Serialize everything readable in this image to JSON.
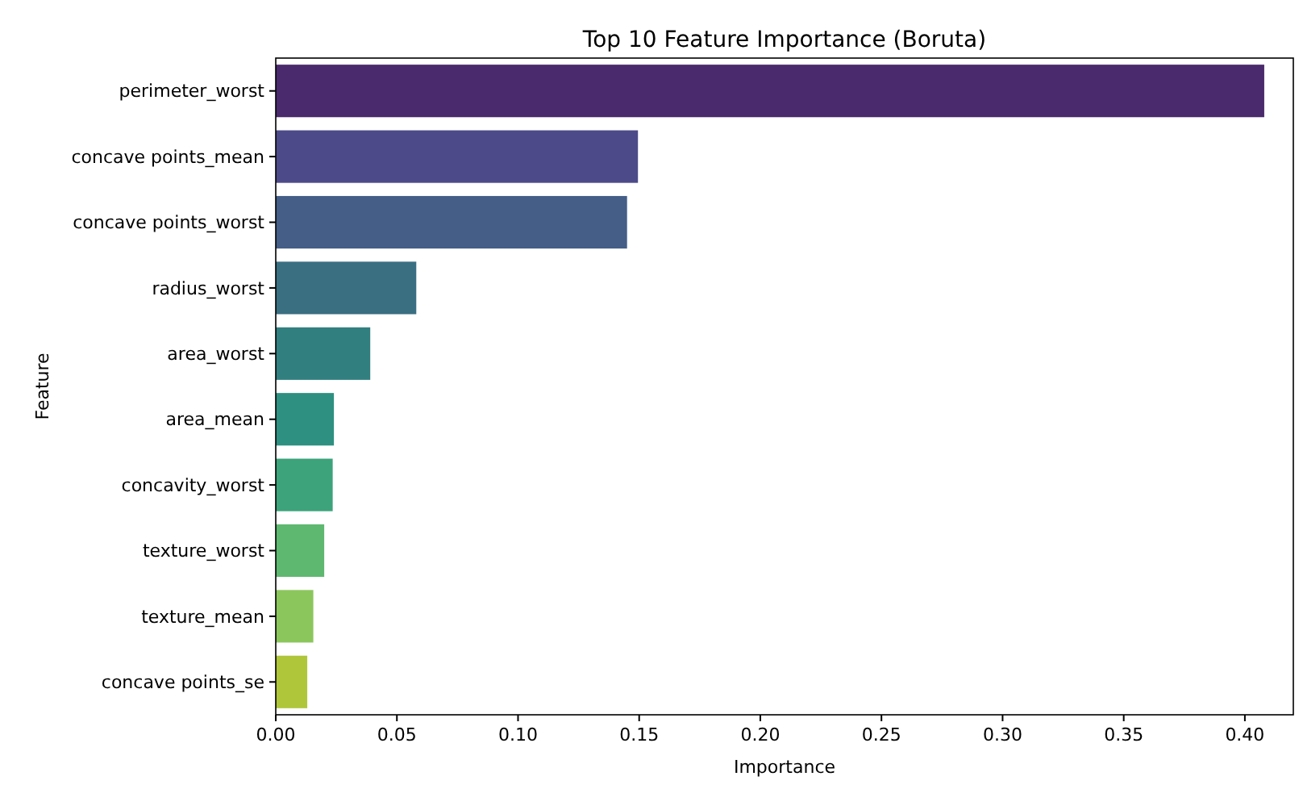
{
  "chart_data": {
    "type": "bar",
    "orientation": "horizontal",
    "title": "Top 10 Feature Importance (Boruta)",
    "xlabel": "Importance",
    "ylabel": "Feature",
    "categories": [
      "perimeter_worst",
      "concave points_mean",
      "concave points_worst",
      "radius_worst",
      "area_worst",
      "area_mean",
      "concavity_worst",
      "texture_worst",
      "texture_mean",
      "concave points_se"
    ],
    "values": [
      0.408,
      0.1495,
      0.145,
      0.058,
      0.039,
      0.024,
      0.0235,
      0.02,
      0.0155,
      0.013
    ],
    "colors": [
      "#4a2a6c",
      "#4c4a88",
      "#445e88",
      "#3a6f82",
      "#327f80",
      "#2e9080",
      "#3ca37a",
      "#5eb870",
      "#8bc65c",
      "#b0c63a"
    ],
    "xlim": [
      0,
      0.42
    ],
    "xticks": [
      {
        "value": 0,
        "label": "0.00"
      },
      {
        "value": 0.05,
        "label": "0.05"
      },
      {
        "value": 0.1,
        "label": "0.10"
      },
      {
        "value": 0.15,
        "label": "0.15"
      },
      {
        "value": 0.2,
        "label": "0.20"
      },
      {
        "value": 0.25,
        "label": "0.25"
      },
      {
        "value": 0.3,
        "label": "0.30"
      },
      {
        "value": 0.35,
        "label": "0.35"
      },
      {
        "value": 0.4,
        "label": "0.40"
      }
    ]
  }
}
